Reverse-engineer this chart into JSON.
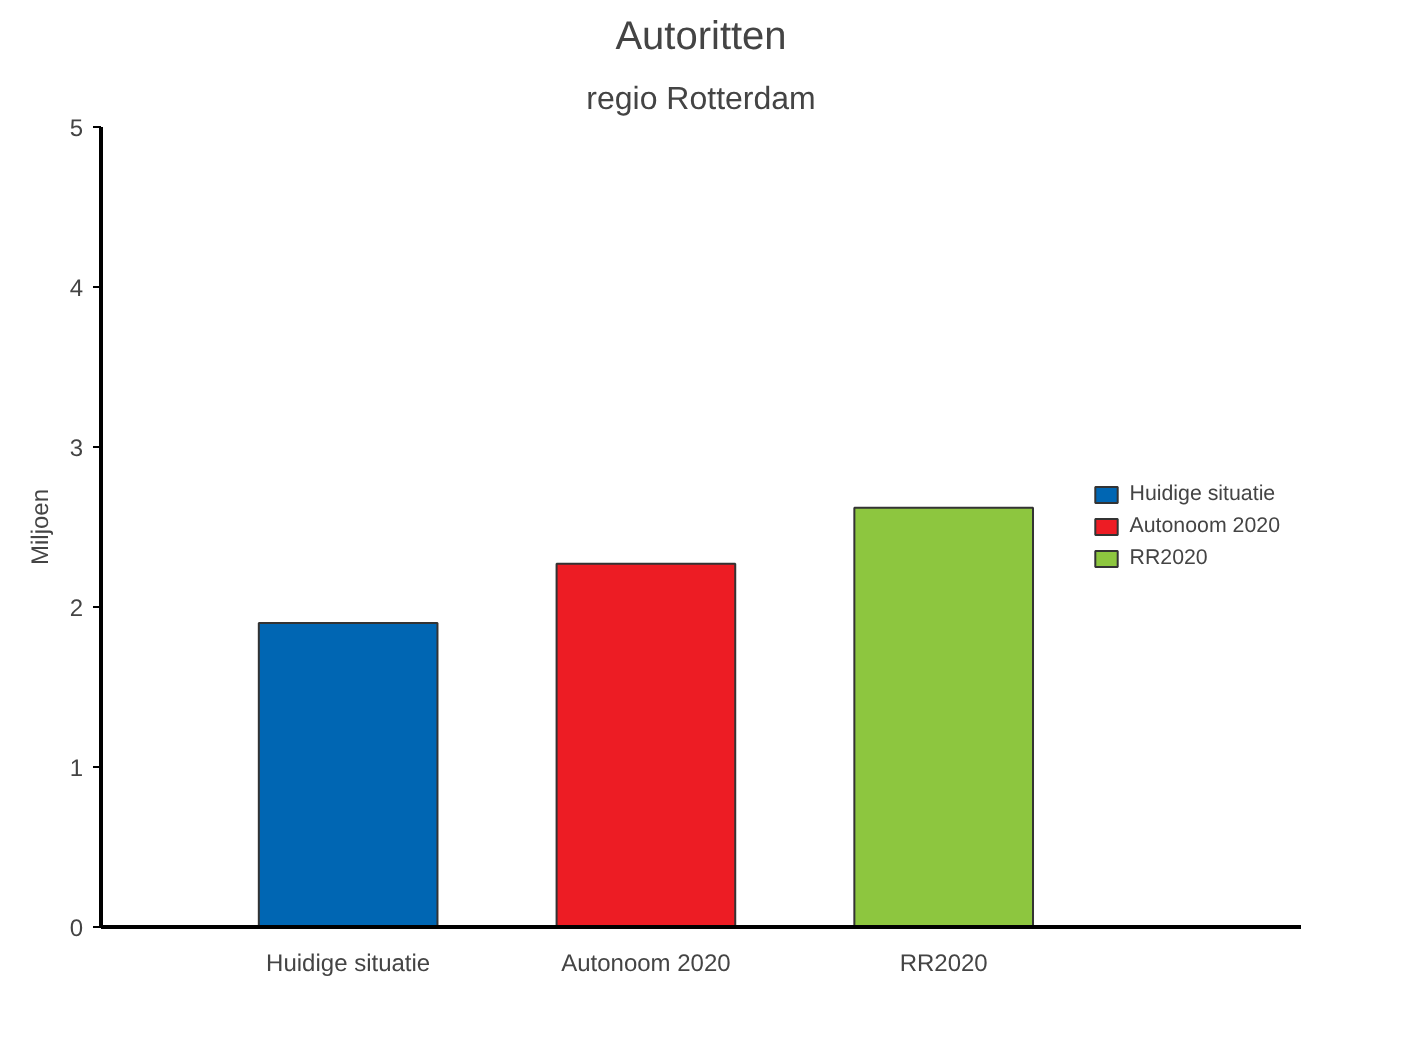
{
  "chart_data": {
    "type": "bar",
    "title": "Autoritten",
    "subtitle": "regio Rotterdam",
    "ylabel": "Miljoen",
    "categories": [
      "Huidige situatie",
      "Autonoom 2020",
      "RR2020"
    ],
    "series": [
      {
        "name": "Huidige situatie",
        "color": "#0066b3",
        "values": [
          1.9,
          null,
          null
        ]
      },
      {
        "name": "Autonoom 2020",
        "color": "#ed1c24",
        "values": [
          null,
          2.27,
          null
        ]
      },
      {
        "name": "RR2020",
        "color": "#8dc63f",
        "values": [
          null,
          null,
          2.62
        ]
      }
    ],
    "stacked": true,
    "ylim": [
      0,
      5
    ],
    "yticks": [
      0,
      1,
      2,
      3,
      4,
      5
    ],
    "grid": false,
    "legend": "right"
  }
}
